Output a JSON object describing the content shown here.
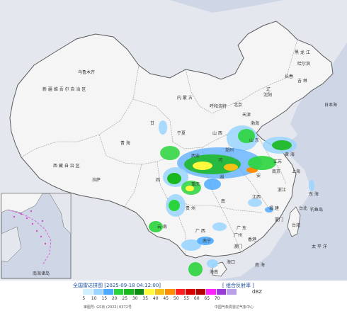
{
  "legend": {
    "title": "全国雷达拼图 [2025-09-18 04:12:00]",
    "product": "[ 组合反射率 ]",
    "unit": "dBZ",
    "ticks": [
      "5",
      "10",
      "15",
      "20",
      "25",
      "30",
      "35",
      "40",
      "45",
      "50",
      "55",
      "60",
      "65",
      "70"
    ],
    "colors": [
      "#d0f0ff",
      "#9ad5ff",
      "#4eaaff",
      "#2ad43c",
      "#19b81e",
      "#0e8c12",
      "#fffa3d",
      "#f2c316",
      "#ff8c00",
      "#ff1f1f",
      "#d50000",
      "#b00000",
      "#ff1fff",
      "#9a3ad8",
      "#b9a0e6"
    ]
  },
  "footer": {
    "approval": "审图号: GS京 (2022) 0372号",
    "credit": "中国气象局雷达气象中心"
  },
  "map_labels": {
    "xinjiang": "新 疆 维 吾 尔 自 治 区",
    "urumqi": "乌鲁木齐",
    "qinghai": "青 海",
    "xizang": "西 藏 自 治 区",
    "lhasa": "拉萨",
    "heilongjiang": "黑 龙 江",
    "harbin": "哈尔滨",
    "jilin": "吉 林",
    "changchun": "长春",
    "liaoning": "辽",
    "hohhot": "呼和浩特",
    "beijing": "北京",
    "tianjin": "天津",
    "shenyang": "沈阳",
    "shanxi": "山 西",
    "shandong": "山 东",
    "zhengzhou": "郑州",
    "xian": "西安",
    "sichuan": "四",
    "chongqing": "重庆",
    "guizhou": "贵 州",
    "guangxi": "广 西",
    "yunnan": "云 南",
    "nanning": "南宁",
    "haikou": "海口",
    "guangzhou": "广州",
    "fujian": "福 建",
    "zhejiang": "浙江",
    "jiangxi": "江西",
    "nanjing": "南京",
    "shanghai": "上海",
    "taiwan": "台湾",
    "xiamen": "厦门",
    "taipei": "台北",
    "hong_kong": "香港",
    "macau": "澳门",
    "east_china_sea": "东 海",
    "pacific": "太 平 洋",
    "nanhai": "南 海",
    "bohai": "渤海",
    "huanghai": "黄 海",
    "riben": "日本海",
    "xiaodao": "钓鱼岛",
    "south_china_sea_islands": "南海诸岛",
    "ningxia": "宁夏",
    "gansu": "甘",
    "mongolia": "内 蒙 古",
    "henan": "河",
    "hubei": "湖",
    "hunan": "南",
    "anhui": "安",
    "jiangsu": "江苏",
    "guangdong": "广 东",
    "hainan": "海南"
  },
  "colors": {
    "sea": "#c8d2e6",
    "land": "#f4f4f4",
    "outside": "#d6dbe6",
    "border": "#6a6a6a"
  }
}
